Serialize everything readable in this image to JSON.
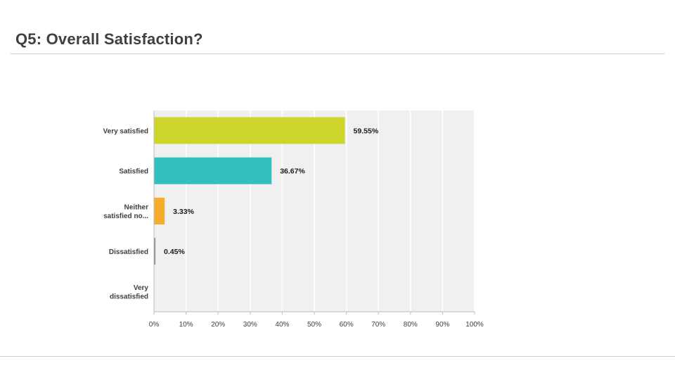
{
  "slide": {
    "title": "Q5: Overall Satisfaction?"
  },
  "chart_data": {
    "type": "bar",
    "orientation": "horizontal",
    "categories": [
      [
        "Very satisfied"
      ],
      [
        "Satisfied"
      ],
      [
        "Neither",
        "satisfied no..."
      ],
      [
        "Dissatisfied"
      ],
      [
        "Very",
        "dissatisfied"
      ]
    ],
    "values": [
      59.55,
      36.67,
      3.33,
      0.45,
      0
    ],
    "data_labels": [
      "59.55%",
      "36.67%",
      "3.33%",
      "0.45%",
      ""
    ],
    "colors": [
      "#cdd52a",
      "#34bfbf",
      "#f5ad2b",
      "#8a8a8a",
      "#cccccc"
    ],
    "xlim": [
      0,
      100
    ],
    "xticks": [
      "0%",
      "10%",
      "20%",
      "30%",
      "40%",
      "50%",
      "60%",
      "70%",
      "80%",
      "90%",
      "100%"
    ],
    "grid": true,
    "legend": "none",
    "plot_background": "#f0f0f0",
    "grid_color": "#ffffff"
  }
}
